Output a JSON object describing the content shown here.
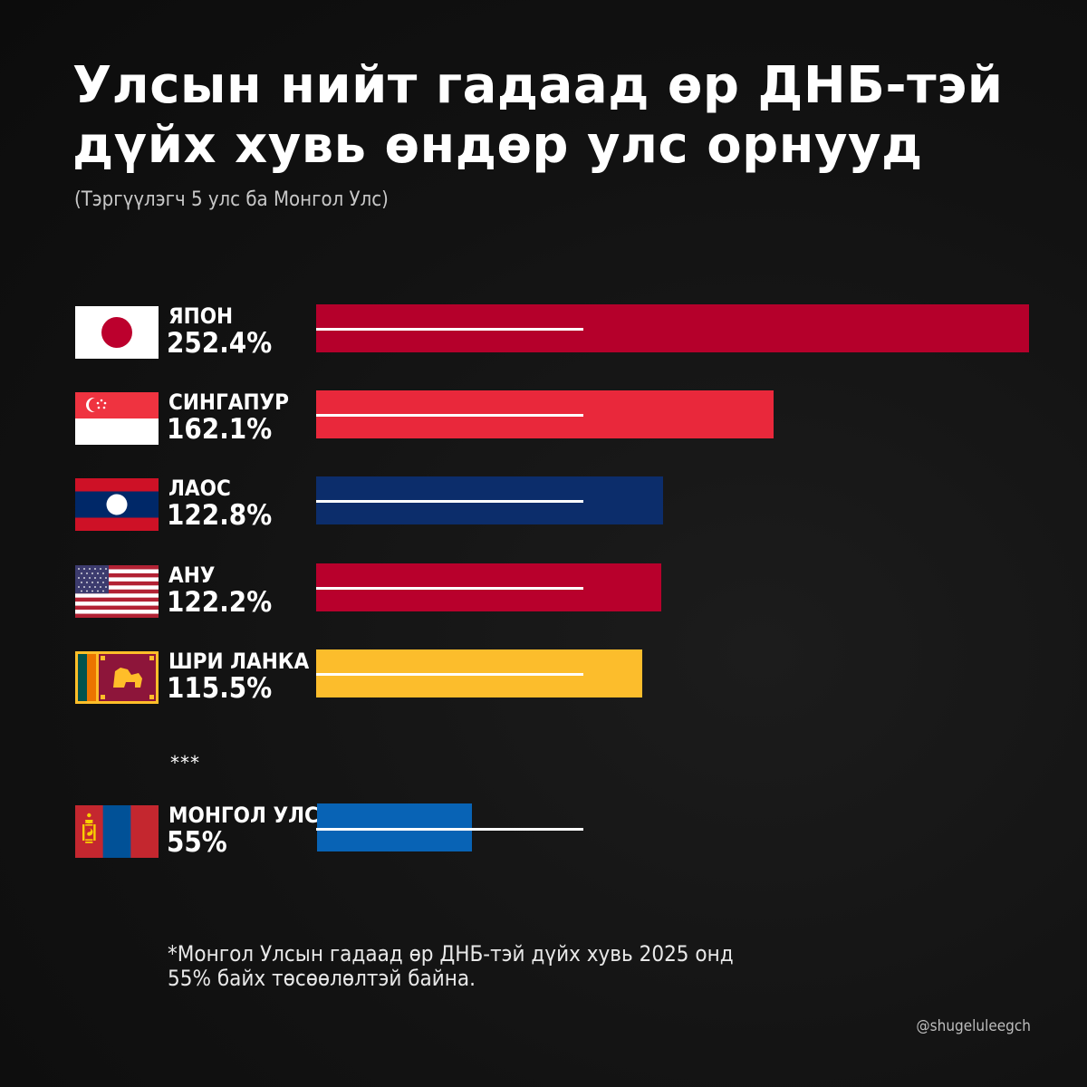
{
  "title": {
    "line1": "Улсын нийт гадаад өр ДНБ-тэй",
    "line2": "дүйх хувь өндөр улс орнууд"
  },
  "subtitle": "(Тэргүүлэгч 5 улс ба Монгол Улс)",
  "separator": "***",
  "footnote": {
    "line1": "*Монгол Улсын гадаад өр ДНБ-тэй дүйх хувь 2025 онд",
    "line2": "55% байх төсөөлөлтэй байна."
  },
  "credit": "@shugeluleegch",
  "chart_data": {
    "type": "bar",
    "orientation": "horizontal",
    "title": "Улсын нийт гадаад өр ДНБ-тэй дүйх хувь өндөр улс орнууд",
    "subtitle": "(Тэргүүлэгч 5 улс ба Монгол Улс)",
    "unit": "%",
    "reference_line_value": 100,
    "categories": [
      "ЯПОН",
      "СИНГАПУР",
      "ЛАОС",
      "АНУ",
      "ШРИ ЛАНКА",
      "МОНГОЛ УЛС"
    ],
    "values": [
      252.4,
      162.1,
      122.8,
      122.2,
      115.5,
      55
    ],
    "value_labels": [
      "252.4%",
      "162.1%",
      "122.8%",
      "122.2%",
      "115.5%",
      "55%"
    ],
    "colors": [
      "#b5002b",
      "#e9283b",
      "#0c2d6b",
      "#b8002c",
      "#fcbd2c",
      "#0863b5"
    ],
    "flags": [
      "japan-flag",
      "singapore-flag",
      "laos-flag",
      "usa-flag",
      "sri-lanka-flag",
      "mongolia-flag"
    ],
    "xlim": [
      0,
      252.4
    ],
    "grid": false
  }
}
